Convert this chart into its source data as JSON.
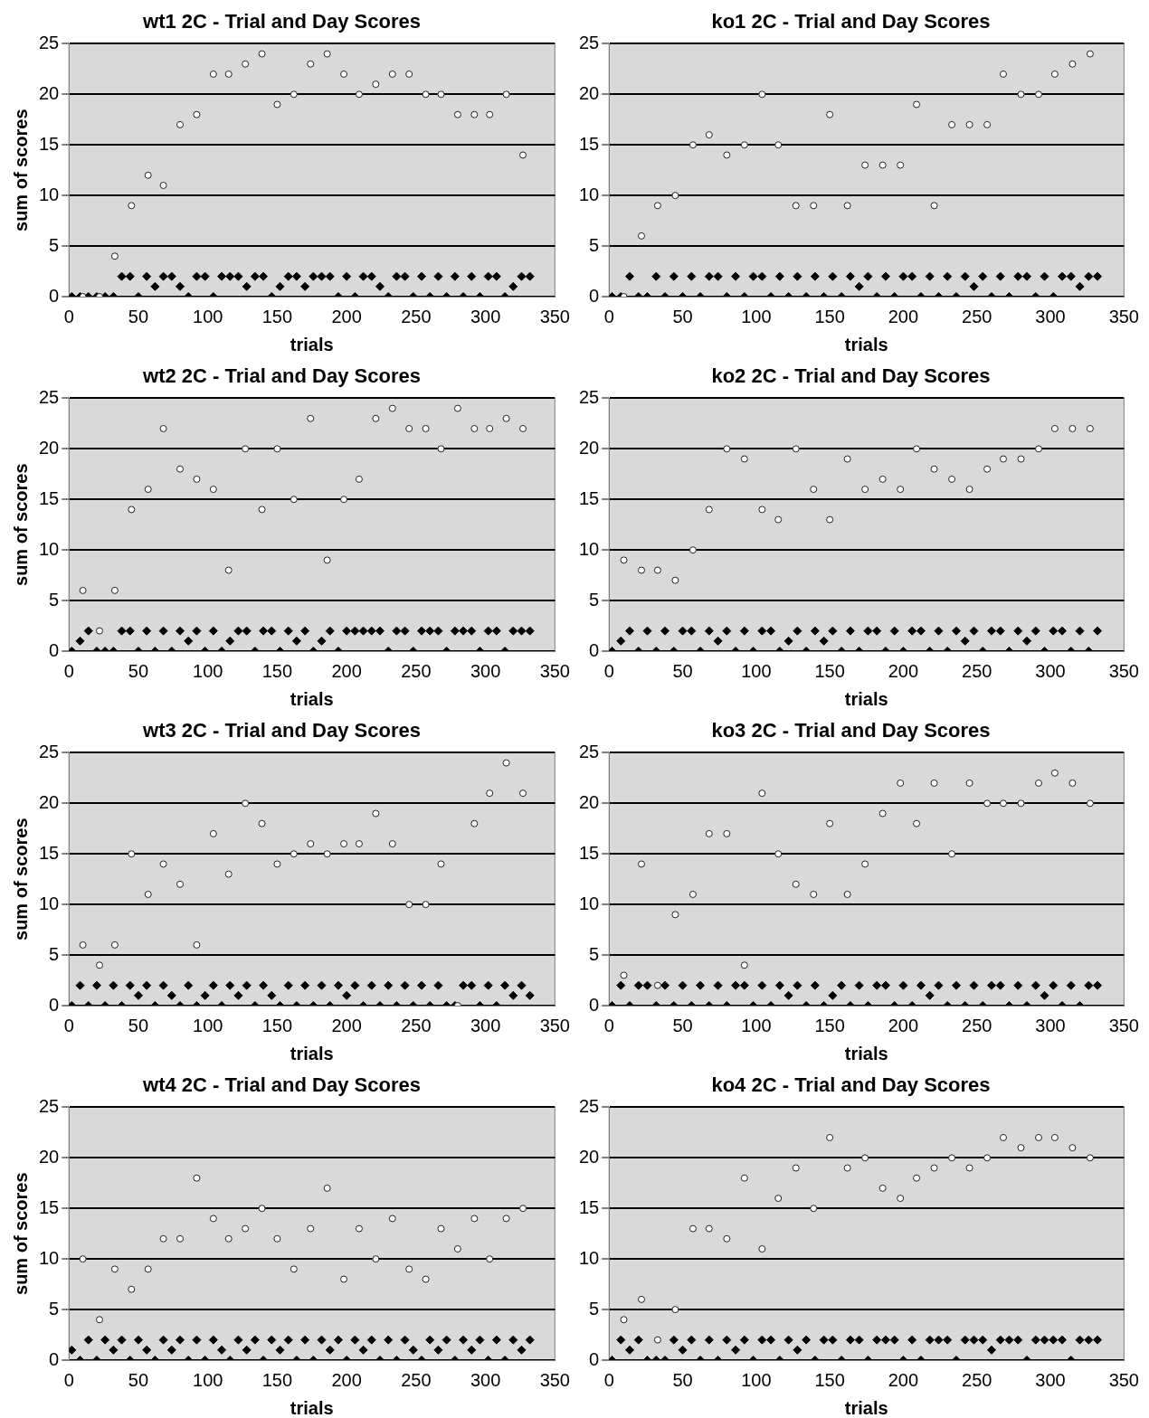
{
  "chart_data": [
    {
      "type": "scatter",
      "title": "wt1 2C - Trial and Day Scores",
      "xlabel": "trials",
      "ylabel": "sum of scores",
      "xlim": [
        0,
        350
      ],
      "xticks": [
        0,
        50,
        100,
        150,
        200,
        250,
        300,
        350
      ],
      "ylim": [
        0,
        25
      ],
      "yticks": [
        0,
        5,
        10,
        15,
        20,
        25
      ],
      "grid": "y",
      "series": [
        {
          "marker": "diamond",
          "color": "#000000",
          "x": [
            2,
            8,
            14,
            20,
            26,
            32,
            38,
            44,
            50,
            56,
            62,
            68,
            74,
            80,
            86,
            92,
            98,
            104,
            110,
            116,
            122,
            128,
            134,
            140,
            146,
            152,
            158,
            164,
            170,
            176,
            182,
            188,
            194,
            200,
            206,
            212,
            218,
            224,
            230,
            236,
            242,
            248,
            254,
            260,
            266,
            272,
            278,
            284,
            290,
            296,
            302,
            308,
            314,
            320,
            326,
            332
          ],
          "values": [
            0,
            0,
            0,
            0,
            0,
            0,
            2,
            2,
            0,
            2,
            1,
            2,
            2,
            1,
            0,
            2,
            2,
            0,
            2,
            2,
            2,
            1,
            2,
            2,
            0,
            1,
            2,
            2,
            1,
            2,
            2,
            2,
            0,
            2,
            0,
            2,
            2,
            1,
            0,
            2,
            2,
            0,
            2,
            0,
            2,
            0,
            2,
            0,
            2,
            0,
            2,
            2,
            0,
            1,
            2,
            2
          ]
        },
        {
          "marker": "circle",
          "color": "#ffffff",
          "x": [
            10,
            22,
            33,
            45,
            57,
            68,
            80,
            92,
            104,
            115,
            127,
            139,
            150,
            162,
            174,
            186,
            198,
            209,
            221,
            233,
            245,
            257,
            268,
            280,
            292,
            303,
            315,
            327
          ],
          "values": [
            0,
            0,
            4,
            9,
            12,
            11,
            17,
            18,
            22,
            22,
            23,
            24,
            19,
            20,
            23,
            24,
            22,
            20,
            21,
            22,
            22,
            20,
            20,
            18,
            18,
            18,
            20,
            14
          ]
        }
      ]
    },
    {
      "type": "scatter",
      "title": "ko1 2C - Trial and Day Scores",
      "xlabel": "trials",
      "xlim": [
        0,
        350
      ],
      "xticks": [
        0,
        50,
        100,
        150,
        200,
        250,
        300,
        350
      ],
      "ylim": [
        0,
        25
      ],
      "yticks": [
        0,
        5,
        10,
        15,
        20,
        25
      ],
      "grid": "y",
      "series": [
        {
          "marker": "diamond",
          "color": "#000000",
          "x": [
            2,
            8,
            14,
            20,
            26,
            32,
            38,
            44,
            50,
            56,
            62,
            68,
            74,
            80,
            86,
            92,
            98,
            104,
            110,
            116,
            122,
            128,
            134,
            140,
            146,
            152,
            158,
            164,
            170,
            176,
            182,
            188,
            194,
            200,
            206,
            212,
            218,
            224,
            230,
            236,
            242,
            248,
            254,
            260,
            266,
            272,
            278,
            284,
            290,
            296,
            302,
            308,
            314,
            320,
            326,
            332
          ],
          "values": [
            0,
            0,
            2,
            0,
            0,
            2,
            0,
            2,
            0,
            2,
            0,
            2,
            2,
            0,
            2,
            0,
            2,
            2,
            0,
            2,
            0,
            2,
            0,
            2,
            0,
            2,
            0,
            2,
            1,
            2,
            0,
            2,
            0,
            2,
            2,
            0,
            2,
            0,
            2,
            0,
            2,
            1,
            2,
            0,
            2,
            0,
            2,
            2,
            0,
            2,
            0,
            2,
            2,
            1,
            2,
            2
          ]
        },
        {
          "marker": "circle",
          "color": "#ffffff",
          "x": [
            10,
            22,
            33,
            45,
            57,
            68,
            80,
            92,
            104,
            115,
            127,
            139,
            150,
            162,
            174,
            186,
            198,
            209,
            221,
            233,
            245,
            257,
            268,
            280,
            292,
            303,
            315,
            327
          ],
          "values": [
            0,
            6,
            9,
            10,
            15,
            16,
            14,
            15,
            20,
            15,
            9,
            9,
            18,
            9,
            13,
            13,
            13,
            19,
            9,
            17,
            17,
            17,
            22,
            20,
            20,
            22,
            23,
            24
          ]
        }
      ]
    },
    {
      "type": "scatter",
      "title": "wt2 2C - Trial and Day Scores",
      "xlabel": "trials",
      "ylabel": "sum of scores",
      "xlim": [
        0,
        350
      ],
      "xticks": [
        0,
        50,
        100,
        150,
        200,
        250,
        300,
        350
      ],
      "ylim": [
        0,
        25
      ],
      "yticks": [
        0,
        5,
        10,
        15,
        20,
        25
      ],
      "grid": "y",
      "series": [
        {
          "marker": "diamond",
          "color": "#000000",
          "x": [
            2,
            8,
            14,
            20,
            26,
            32,
            38,
            44,
            50,
            56,
            62,
            68,
            74,
            80,
            86,
            92,
            98,
            104,
            110,
            116,
            122,
            128,
            134,
            140,
            146,
            152,
            158,
            164,
            170,
            176,
            182,
            188,
            194,
            200,
            206,
            212,
            218,
            224,
            230,
            236,
            242,
            248,
            254,
            260,
            266,
            272,
            278,
            284,
            290,
            296,
            302,
            308,
            314,
            320,
            326,
            332
          ],
          "values": [
            0,
            1,
            2,
            0,
            0,
            0,
            2,
            2,
            0,
            2,
            0,
            2,
            0,
            2,
            1,
            2,
            0,
            2,
            0,
            1,
            2,
            2,
            0,
            2,
            2,
            0,
            2,
            1,
            2,
            0,
            1,
            2,
            0,
            2,
            2,
            2,
            2,
            2,
            0,
            2,
            2,
            0,
            2,
            2,
            2,
            0,
            2,
            2,
            2,
            0,
            2,
            2,
            0,
            2,
            2,
            2
          ]
        },
        {
          "marker": "circle",
          "color": "#ffffff",
          "x": [
            10,
            22,
            33,
            45,
            57,
            68,
            80,
            92,
            104,
            115,
            127,
            139,
            150,
            162,
            174,
            186,
            198,
            209,
            221,
            233,
            245,
            257,
            268,
            280,
            292,
            303,
            315,
            327
          ],
          "values": [
            6,
            2,
            6,
            14,
            16,
            22,
            18,
            17,
            16,
            8,
            20,
            14,
            20,
            15,
            23,
            9,
            15,
            17,
            23,
            24,
            22,
            22,
            20,
            24,
            22,
            22,
            23,
            22
          ]
        }
      ]
    },
    {
      "type": "scatter",
      "title": "ko2 2C - Trial and Day Scores",
      "xlabel": "trials",
      "xlim": [
        0,
        350
      ],
      "xticks": [
        0,
        50,
        100,
        150,
        200,
        250,
        300,
        350
      ],
      "ylim": [
        0,
        25
      ],
      "yticks": [
        0,
        5,
        10,
        15,
        20,
        25
      ],
      "grid": "y",
      "series": [
        {
          "marker": "diamond",
          "color": "#000000",
          "x": [
            2,
            8,
            14,
            20,
            26,
            32,
            38,
            44,
            50,
            56,
            62,
            68,
            74,
            80,
            86,
            92,
            98,
            104,
            110,
            116,
            122,
            128,
            134,
            140,
            146,
            152,
            158,
            164,
            170,
            176,
            182,
            188,
            194,
            200,
            206,
            212,
            218,
            224,
            230,
            236,
            242,
            248,
            254,
            260,
            266,
            272,
            278,
            284,
            290,
            296,
            302,
            308,
            314,
            320,
            326,
            332
          ],
          "values": [
            0,
            1,
            2,
            0,
            2,
            0,
            2,
            0,
            2,
            2,
            0,
            2,
            1,
            2,
            0,
            2,
            0,
            2,
            2,
            0,
            1,
            2,
            0,
            2,
            1,
            2,
            0,
            2,
            0,
            2,
            2,
            0,
            2,
            0,
            2,
            2,
            0,
            2,
            0,
            2,
            1,
            2,
            0,
            2,
            2,
            0,
            2,
            1,
            2,
            0,
            2,
            2,
            0,
            2,
            0,
            2
          ]
        },
        {
          "marker": "circle",
          "color": "#ffffff",
          "x": [
            10,
            22,
            33,
            45,
            57,
            68,
            80,
            92,
            104,
            115,
            127,
            139,
            150,
            162,
            174,
            186,
            198,
            209,
            221,
            233,
            245,
            257,
            268,
            280,
            292,
            303,
            315,
            327
          ],
          "values": [
            9,
            8,
            8,
            7,
            10,
            14,
            20,
            19,
            14,
            13,
            20,
            16,
            13,
            19,
            16,
            17,
            16,
            20,
            18,
            17,
            16,
            18,
            19,
            19,
            20,
            22,
            22,
            22
          ]
        }
      ]
    },
    {
      "type": "scatter",
      "title": "wt3 2C - Trial and Day Scores",
      "xlabel": "trials",
      "ylabel": "sum of scores",
      "xlim": [
        0,
        350
      ],
      "xticks": [
        0,
        50,
        100,
        150,
        200,
        250,
        300,
        350
      ],
      "ylim": [
        0,
        25
      ],
      "yticks": [
        0,
        5,
        10,
        15,
        20,
        25
      ],
      "grid": "y",
      "series": [
        {
          "marker": "diamond",
          "color": "#000000",
          "x": [
            2,
            8,
            14,
            20,
            26,
            32,
            38,
            44,
            50,
            56,
            62,
            68,
            74,
            80,
            86,
            92,
            98,
            104,
            110,
            116,
            122,
            128,
            134,
            140,
            146,
            152,
            158,
            164,
            170,
            176,
            182,
            188,
            194,
            200,
            206,
            212,
            218,
            224,
            230,
            236,
            242,
            248,
            254,
            260,
            266,
            272,
            278,
            284,
            290,
            296,
            302,
            308,
            314,
            320,
            326,
            332
          ],
          "values": [
            0,
            2,
            0,
            2,
            0,
            2,
            0,
            2,
            1,
            2,
            0,
            2,
            1,
            0,
            2,
            0,
            1,
            2,
            0,
            2,
            1,
            2,
            0,
            2,
            1,
            0,
            2,
            0,
            2,
            0,
            2,
            0,
            2,
            1,
            2,
            0,
            2,
            0,
            2,
            0,
            2,
            0,
            2,
            0,
            2,
            0,
            0,
            2,
            2,
            0,
            2,
            0,
            2,
            1,
            2,
            1
          ]
        },
        {
          "marker": "circle",
          "color": "#ffffff",
          "x": [
            10,
            22,
            33,
            45,
            57,
            68,
            80,
            92,
            104,
            115,
            127,
            139,
            150,
            162,
            174,
            186,
            198,
            209,
            221,
            233,
            245,
            257,
            268,
            280,
            292,
            303,
            315,
            327
          ],
          "values": [
            6,
            4,
            6,
            15,
            11,
            14,
            12,
            6,
            17,
            13,
            20,
            18,
            14,
            15,
            16,
            15,
            16,
            16,
            19,
            16,
            10,
            10,
            14,
            0,
            18,
            21,
            24,
            21
          ]
        }
      ]
    },
    {
      "type": "scatter",
      "title": "ko3 2C - Trial and Day Scores",
      "xlabel": "trials",
      "xlim": [
        0,
        350
      ],
      "xticks": [
        0,
        50,
        100,
        150,
        200,
        250,
        300,
        350
      ],
      "ylim": [
        0,
        25
      ],
      "yticks": [
        0,
        5,
        10,
        15,
        20,
        25
      ],
      "grid": "y",
      "series": [
        {
          "marker": "diamond",
          "color": "#000000",
          "x": [
            2,
            8,
            14,
            20,
            26,
            32,
            38,
            44,
            50,
            56,
            62,
            68,
            74,
            80,
            86,
            92,
            98,
            104,
            110,
            116,
            122,
            128,
            134,
            140,
            146,
            152,
            158,
            164,
            170,
            176,
            182,
            188,
            194,
            200,
            206,
            212,
            218,
            224,
            230,
            236,
            242,
            248,
            254,
            260,
            266,
            272,
            278,
            284,
            290,
            296,
            302,
            308,
            314,
            320,
            326,
            332
          ],
          "values": [
            0,
            2,
            0,
            2,
            2,
            0,
            2,
            0,
            2,
            0,
            2,
            0,
            2,
            0,
            2,
            2,
            0,
            2,
            0,
            2,
            1,
            2,
            0,
            2,
            0,
            1,
            2,
            0,
            2,
            0,
            2,
            2,
            0,
            2,
            0,
            2,
            1,
            2,
            0,
            2,
            0,
            2,
            0,
            2,
            2,
            0,
            2,
            0,
            2,
            1,
            2,
            0,
            2,
            0,
            2,
            2
          ]
        },
        {
          "marker": "circle",
          "color": "#ffffff",
          "x": [
            10,
            22,
            33,
            45,
            57,
            68,
            80,
            92,
            104,
            115,
            127,
            139,
            150,
            162,
            174,
            186,
            198,
            209,
            221,
            233,
            245,
            257,
            268,
            280,
            292,
            303,
            315,
            327
          ],
          "values": [
            3,
            14,
            2,
            9,
            11,
            17,
            17,
            4,
            21,
            15,
            12,
            11,
            18,
            11,
            14,
            19,
            22,
            18,
            22,
            15,
            22,
            20,
            20,
            20,
            22,
            23,
            22,
            20
          ]
        }
      ]
    },
    {
      "type": "scatter",
      "title": "wt4 2C - Trial and Day Scores",
      "xlabel": "trials",
      "ylabel": "sum of scores",
      "xlim": [
        0,
        350
      ],
      "xticks": [
        0,
        50,
        100,
        150,
        200,
        250,
        300,
        350
      ],
      "ylim": [
        0,
        25
      ],
      "yticks": [
        0,
        5,
        10,
        15,
        20,
        25
      ],
      "grid": "y",
      "series": [
        {
          "marker": "diamond",
          "color": "#000000",
          "x": [
            2,
            8,
            14,
            20,
            26,
            32,
            38,
            44,
            50,
            56,
            62,
            68,
            74,
            80,
            86,
            92,
            98,
            104,
            110,
            116,
            122,
            128,
            134,
            140,
            146,
            152,
            158,
            164,
            170,
            176,
            182,
            188,
            194,
            200,
            206,
            212,
            218,
            224,
            230,
            236,
            242,
            248,
            254,
            260,
            266,
            272,
            278,
            284,
            290,
            296,
            302,
            308,
            314,
            320,
            326,
            332
          ],
          "values": [
            1,
            0,
            2,
            0,
            2,
            1,
            2,
            0,
            2,
            1,
            0,
            2,
            1,
            2,
            0,
            2,
            0,
            2,
            1,
            0,
            2,
            1,
            2,
            0,
            2,
            1,
            2,
            0,
            2,
            0,
            2,
            1,
            2,
            0,
            2,
            1,
            2,
            0,
            2,
            0,
            2,
            1,
            0,
            2,
            1,
            2,
            0,
            2,
            1,
            2,
            0,
            2,
            0,
            2,
            1,
            2
          ]
        },
        {
          "marker": "circle",
          "color": "#ffffff",
          "x": [
            10,
            22,
            33,
            45,
            57,
            68,
            80,
            92,
            104,
            115,
            127,
            139,
            150,
            162,
            174,
            186,
            198,
            209,
            221,
            233,
            245,
            257,
            268,
            280,
            292,
            303,
            315,
            327
          ],
          "values": [
            10,
            4,
            9,
            7,
            9,
            12,
            12,
            18,
            14,
            12,
            13,
            15,
            12,
            9,
            13,
            17,
            8,
            13,
            10,
            14,
            9,
            8,
            13,
            11,
            14,
            10,
            14,
            15
          ]
        }
      ]
    },
    {
      "type": "scatter",
      "title": "ko4 2C - Trial and Day Scores",
      "xlabel": "trials",
      "xlim": [
        0,
        350
      ],
      "xticks": [
        0,
        50,
        100,
        150,
        200,
        250,
        300,
        350
      ],
      "ylim": [
        0,
        25
      ],
      "yticks": [
        0,
        5,
        10,
        15,
        20,
        25
      ],
      "grid": "y",
      "series": [
        {
          "marker": "diamond",
          "color": "#000000",
          "x": [
            2,
            8,
            14,
            20,
            26,
            32,
            38,
            44,
            50,
            56,
            62,
            68,
            74,
            80,
            86,
            92,
            98,
            104,
            110,
            116,
            122,
            128,
            134,
            140,
            146,
            152,
            158,
            164,
            170,
            176,
            182,
            188,
            194,
            200,
            206,
            212,
            218,
            224,
            230,
            236,
            242,
            248,
            254,
            260,
            266,
            272,
            278,
            284,
            290,
            296,
            302,
            308,
            314,
            320,
            326,
            332
          ],
          "values": [
            0,
            2,
            1,
            2,
            0,
            0,
            0,
            2,
            1,
            2,
            0,
            2,
            0,
            2,
            1,
            2,
            0,
            2,
            2,
            0,
            2,
            1,
            2,
            0,
            2,
            2,
            0,
            2,
            2,
            0,
            2,
            2,
            2,
            0,
            2,
            0,
            2,
            2,
            2,
            0,
            2,
            2,
            2,
            1,
            2,
            2,
            2,
            0,
            2,
            2,
            2,
            2,
            0,
            2,
            2,
            2
          ]
        },
        {
          "marker": "circle",
          "color": "#ffffff",
          "x": [
            10,
            22,
            33,
            45,
            57,
            68,
            80,
            92,
            104,
            115,
            127,
            139,
            150,
            162,
            174,
            186,
            198,
            209,
            221,
            233,
            245,
            257,
            268,
            280,
            292,
            303,
            315,
            327
          ],
          "values": [
            4,
            6,
            2,
            5,
            13,
            13,
            12,
            18,
            11,
            16,
            19,
            15,
            22,
            19,
            20,
            17,
            16,
            18,
            19,
            20,
            19,
            20,
            22,
            21,
            22,
            22,
            21,
            20
          ]
        }
      ]
    }
  ]
}
